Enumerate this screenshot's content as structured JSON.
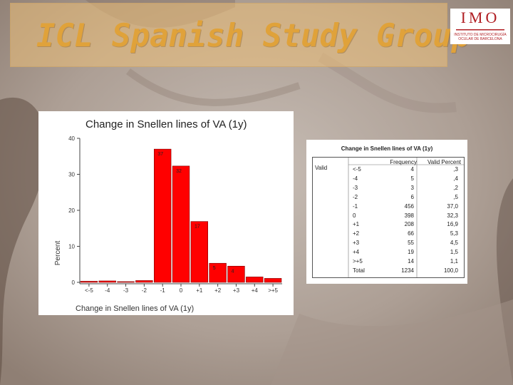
{
  "header": {
    "title": "ICL Spanish Study Group"
  },
  "logo": {
    "letters": "IMO",
    "subtitle": "INSTITUTO DE MICROCIRUGÍA OCULAR DE BARCELONA"
  },
  "chart_data": {
    "type": "bar",
    "title": "Change in Snellen lines of VA (1y)",
    "xlabel": "Change in Snellen lines of VA (1y)",
    "ylabel": "Percent",
    "categories": [
      "<-5",
      "-4",
      "-3",
      "-2",
      "-1",
      "0",
      "+1",
      "+2",
      "+3",
      "+4",
      ">+5"
    ],
    "values": [
      0.3,
      0.4,
      0.2,
      0.5,
      37,
      32.3,
      16.9,
      5.3,
      4.5,
      1.5,
      1.1
    ],
    "data_labels": [
      "",
      "",
      "",
      "",
      "37",
      "32",
      "17",
      "5",
      "4",
      "",
      ""
    ],
    "yticks": [
      "0",
      "10",
      "20",
      "30",
      "40"
    ],
    "ylim": [
      0,
      40
    ],
    "bar_color": "#ff0000",
    "grid": false
  },
  "table": {
    "title": "Change in Snellen lines of VA (1y)",
    "group_label": "Valid",
    "headers": [
      "Frequency",
      "Valid Percent"
    ],
    "rows": [
      [
        "<-5",
        "4",
        ",3"
      ],
      [
        "-4",
        "5",
        ",4"
      ],
      [
        "-3",
        "3",
        ",2"
      ],
      [
        "-2",
        "6",
        ",5"
      ],
      [
        "-1",
        "456",
        "37,0"
      ],
      [
        "0",
        "398",
        "32,3"
      ],
      [
        "+1",
        "208",
        "16,9"
      ],
      [
        "+2",
        "66",
        "5,3"
      ],
      [
        "+3",
        "55",
        "4,5"
      ],
      [
        "+4",
        "19",
        "1,5"
      ],
      [
        ">+5",
        "14",
        "1,1"
      ],
      [
        "Total",
        "1234",
        "100,0"
      ]
    ]
  }
}
